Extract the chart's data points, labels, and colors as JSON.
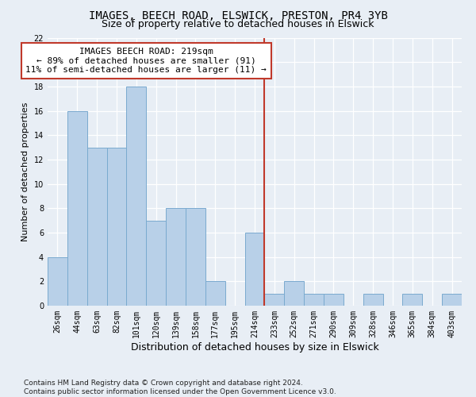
{
  "title1": "IMAGES, BEECH ROAD, ELSWICK, PRESTON, PR4 3YB",
  "title2": "Size of property relative to detached houses in Elswick",
  "xlabel": "Distribution of detached houses by size in Elswick",
  "ylabel": "Number of detached properties",
  "categories": [
    "26sqm",
    "44sqm",
    "63sqm",
    "82sqm",
    "101sqm",
    "120sqm",
    "139sqm",
    "158sqm",
    "177sqm",
    "195sqm",
    "214sqm",
    "233sqm",
    "252sqm",
    "271sqm",
    "290sqm",
    "309sqm",
    "328sqm",
    "346sqm",
    "365sqm",
    "384sqm",
    "403sqm"
  ],
  "values": [
    4,
    16,
    13,
    13,
    18,
    7,
    8,
    8,
    2,
    0,
    6,
    1,
    2,
    1,
    1,
    0,
    1,
    0,
    1,
    0,
    1
  ],
  "bar_color": "#b8d0e8",
  "bar_edge_color": "#7aaacf",
  "vline_x_index": 10.5,
  "vline_color": "#c0392b",
  "annotation_text": "IMAGES BEECH ROAD: 219sqm\n← 89% of detached houses are smaller (91)\n11% of semi-detached houses are larger (11) →",
  "annotation_box_color": "#ffffff",
  "annotation_box_edge": "#c0392b",
  "ylim": [
    0,
    22
  ],
  "yticks": [
    0,
    2,
    4,
    6,
    8,
    10,
    12,
    14,
    16,
    18,
    20,
    22
  ],
  "footnote": "Contains HM Land Registry data © Crown copyright and database right 2024.\nContains public sector information licensed under the Open Government Licence v3.0.",
  "background_color": "#e8eef5",
  "grid_color": "#ffffff",
  "title1_fontsize": 10,
  "title2_fontsize": 9,
  "xlabel_fontsize": 9,
  "ylabel_fontsize": 8,
  "tick_fontsize": 7,
  "annotation_fontsize": 8,
  "footnote_fontsize": 6.5
}
